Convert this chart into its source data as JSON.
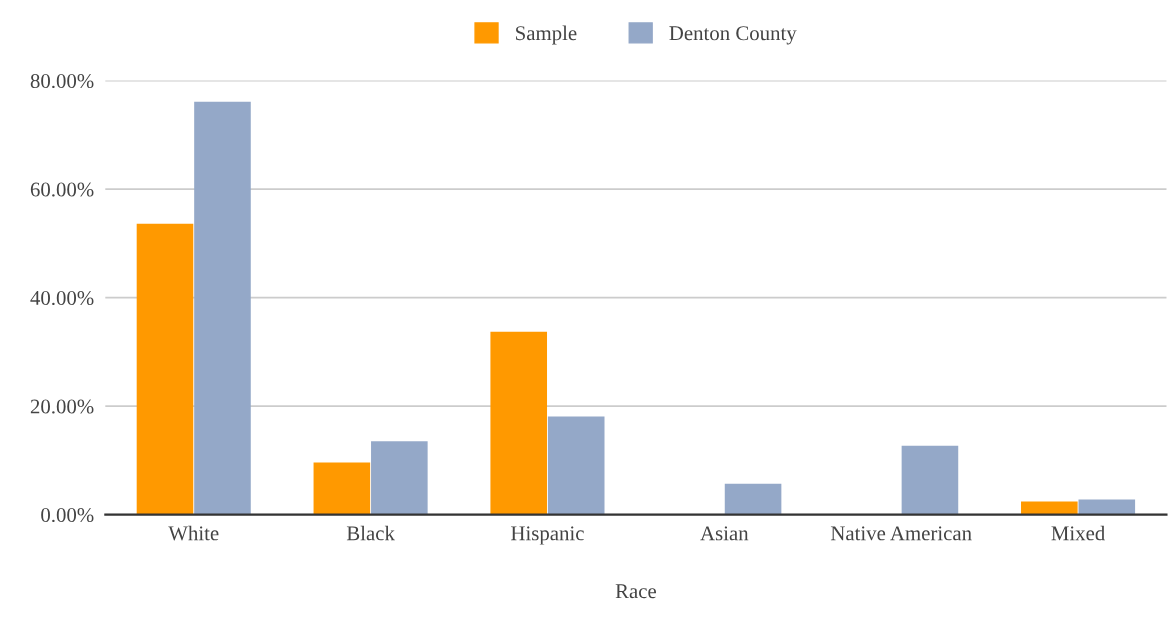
{
  "chart_data": {
    "type": "bar",
    "xlabel": "Race",
    "categories": [
      "White",
      "Black",
      "Hispanic",
      "Asian",
      "Native American",
      "Mixed"
    ],
    "series": [
      {
        "name": "Sample",
        "color": "#ff9900",
        "values": [
          53.6,
          9.6,
          33.7,
          0,
          0,
          2.4
        ]
      },
      {
        "name": "Denton County",
        "color": "#94a8c8",
        "values": [
          76.1,
          13.5,
          18.1,
          5.7,
          12.7,
          2.8
        ]
      }
    ],
    "ylim": [
      0,
      80
    ],
    "yticks": [
      {
        "value": 0,
        "label": "0.00%"
      },
      {
        "value": 20,
        "label": "20.00%"
      },
      {
        "value": 40,
        "label": "40.00%"
      },
      {
        "value": 60,
        "label": "60.00%"
      },
      {
        "value": 80,
        "label": "80.00%"
      }
    ],
    "grid": "y",
    "legend": "top"
  }
}
